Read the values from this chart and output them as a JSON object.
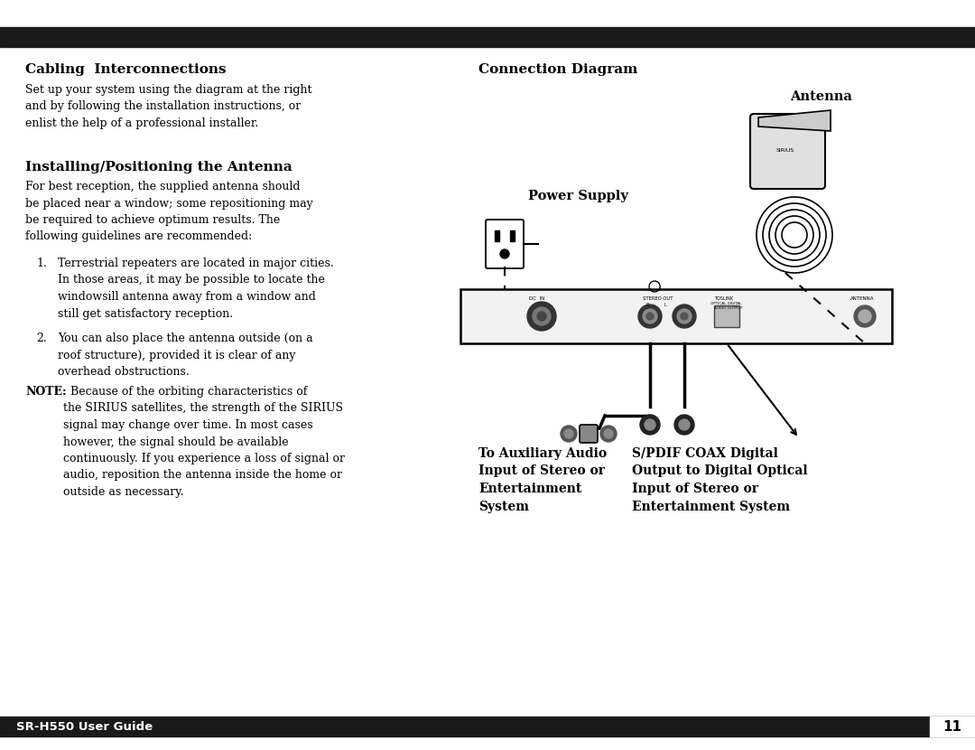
{
  "bg_color": "#ffffff",
  "bar_color": "#1a1a1a",
  "title_left": "Cabling  Interconnections",
  "title_right": "Connection Diagram",
  "body_fontsize": 9.0,
  "title_fontsize": 11.0,
  "footer_text": "SR-H550 User Guide",
  "footer_page": "11",
  "para1": "Set up your system using the diagram at the right\nand by following the installation instructions, or\nenlist the help of a professional installer.",
  "heading2": "Installing/Positioning the Antenna",
  "para2": "For best reception, the supplied antenna should\nbe placed near a window; some repositioning may\nbe required to achieve optimum results. The\nfollowing guidelines are recommended:",
  "list1": "Terrestrial repeaters are located in major cities.\nIn those areas, it may be possible to locate the\nwindowsill antenna away from a window and\nstill get satisfactory reception.",
  "list2": "You can also place the antenna outside (on a\nroof structure), provided it is clear of any\noverhead obstructions.",
  "note_bold": "NOTE:",
  "note_rest": "  Because of the orbiting characteristics of\nthe SIRIUS satellites, the strength of the SIRIUS\nsignal may change over time. In most cases\nhowever, the signal should be available\ncontinuously. If you experience a loss of signal or\naudio, reposition the antenna inside the home or\noutside as necessary.",
  "label_aux": "To Auxiliary Audio\nInput of Stereo or\nEntertainment\nSystem",
  "label_spdif": "S/PDIF COAX Digital\nOutput to Digital Optical\nInput of Stereo or\nEntertainment System",
  "label_antenna": "Antenna",
  "label_power": "Power Supply"
}
